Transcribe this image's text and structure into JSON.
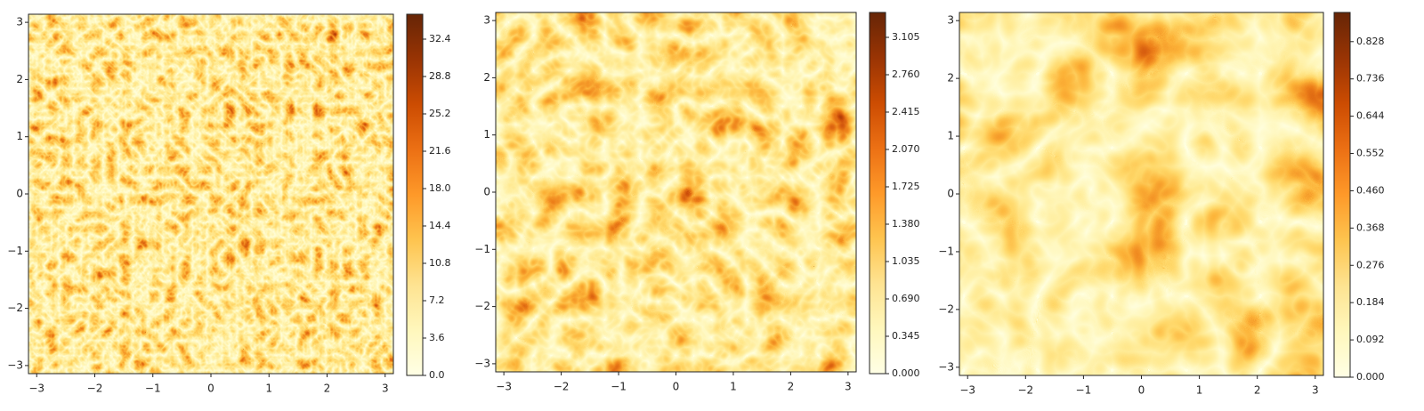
{
  "chart_data": [
    {
      "type": "heatmap",
      "colormap": "YlOrBr",
      "xlim": [
        -3.1416,
        3.1416
      ],
      "ylim": [
        -3.1416,
        3.1416
      ],
      "xticks": [
        {
          "value": -3,
          "label": "−3"
        },
        {
          "value": -2,
          "label": "−2"
        },
        {
          "value": -1,
          "label": "−1"
        },
        0,
        1,
        2,
        3
      ],
      "yticks": [
        {
          "value": -3,
          "label": "−3"
        },
        {
          "value": -2,
          "label": "−2"
        },
        {
          "value": -1,
          "label": "−1"
        },
        0,
        1,
        2,
        3
      ],
      "clim": [
        0,
        34.8
      ],
      "cticks": [
        {
          "value": 0,
          "label": "0.0"
        },
        3.6,
        7.2,
        10.8,
        14.4,
        {
          "value": 18,
          "label": "18.0"
        },
        21.6,
        25.2,
        28.8,
        32.4
      ]
    },
    {
      "type": "heatmap",
      "colormap": "YlOrBr",
      "xlim": [
        -3.1416,
        3.1416
      ],
      "ylim": [
        -3.1416,
        3.1416
      ],
      "xticks": [
        {
          "value": -3,
          "label": "−3"
        },
        {
          "value": -2,
          "label": "−2"
        },
        {
          "value": -1,
          "label": "−1"
        },
        0,
        1,
        2,
        3
      ],
      "yticks": [
        {
          "value": -3,
          "label": "−3"
        },
        {
          "value": -2,
          "label": "−2"
        },
        {
          "value": -1,
          "label": "−1"
        },
        0,
        1,
        2,
        3
      ],
      "clim": [
        0,
        3.335
      ],
      "cticks": [
        {
          "value": 0,
          "label": "0.000"
        },
        0.345,
        {
          "value": 0.69,
          "label": "0.690"
        },
        1.035,
        {
          "value": 1.38,
          "label": "1.380"
        },
        1.725,
        {
          "value": 2.07,
          "label": "2.070"
        },
        2.415,
        {
          "value": 2.76,
          "label": "2.760"
        },
        3.105
      ]
    },
    {
      "type": "heatmap",
      "colormap": "YlOrBr",
      "xlim": [
        -3.1416,
        3.1416
      ],
      "ylim": [
        -3.1416,
        3.1416
      ],
      "xticks": [
        {
          "value": -3,
          "label": "−3"
        },
        {
          "value": -2,
          "label": "−2"
        },
        {
          "value": -1,
          "label": "−1"
        },
        0,
        1,
        2,
        3
      ],
      "yticks": [
        {
          "value": -3,
          "label": "−3"
        },
        {
          "value": -2,
          "label": "−2"
        },
        {
          "value": -1,
          "label": "−1"
        },
        0,
        1,
        2,
        3
      ],
      "clim": [
        0,
        0.9
      ],
      "cticks": [
        {
          "value": 0,
          "label": "0.000"
        },
        0.092,
        0.184,
        0.276,
        0.368,
        {
          "value": 0.46,
          "label": "0.460"
        },
        0.552,
        0.644,
        0.736,
        0.828
      ]
    }
  ]
}
